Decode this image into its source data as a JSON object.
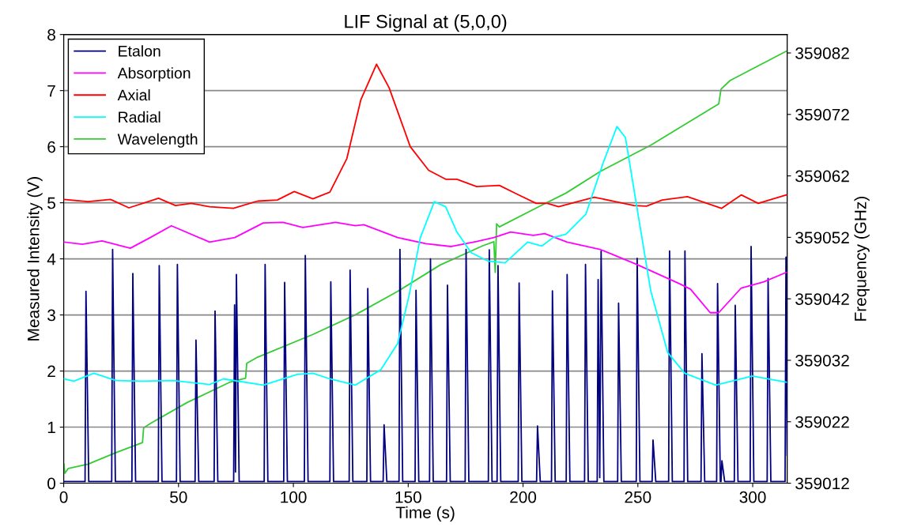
{
  "chart_data": {
    "type": "line",
    "title": "LIF Signal at (5,0,0)",
    "xlabel": "Time (s)",
    "ylabel": "Measured Intensity (V)",
    "y2label": "Frequency (GHz)",
    "xlim": [
      0,
      315
    ],
    "xticks": [
      0,
      50,
      100,
      150,
      200,
      250,
      300
    ],
    "ylim": [
      0,
      8
    ],
    "yticks": [
      0,
      1,
      2,
      3,
      4,
      5,
      6,
      7,
      8
    ],
    "y2lim": [
      359012,
      359085
    ],
    "y2ticks": [
      359012,
      359022,
      359032,
      359042,
      359052,
      359062,
      359072,
      359082
    ],
    "grid": "y",
    "legend": "top left",
    "marker": "none",
    "line_style": "solid",
    "series": [
      {
        "name": "Etalon",
        "color": "#000080",
        "x": [
          0,
          9.3,
          9.7,
          10.9,
          20.9,
          21.3,
          22.5,
          29.7,
          30.1,
          31.3,
          41.2,
          41.6,
          42.8,
          49.1,
          49.5,
          50.7,
          57.2,
          57.6,
          58.8,
          65.5,
          65.9,
          67.1,
          74.0,
          74.4,
          74.8,
          75.2,
          76.4,
          87.3,
          87.7,
          88.9,
          95.8,
          96.2,
          97.4,
          104.8,
          105.2,
          106.4,
          115.9,
          116.3,
          117.5,
          124.3,
          124.7,
          125.9,
          132.0,
          132.4,
          133.6,
          139.1,
          139.5,
          140.7,
          146.0,
          146.4,
          147.6,
          153.0,
          153.4,
          154.6,
          159.3,
          159.7,
          160.9,
          166.7,
          167.1,
          168.3,
          174.8,
          175.2,
          176.4,
          184.9,
          185.3,
          186.5,
          188.7,
          189.1,
          190.3,
          197.9,
          198.3,
          199.5,
          205.9,
          206.3,
          207.5,
          212.4,
          212.8,
          214.0,
          218.8,
          219.2,
          220.4,
          226.8,
          227.2,
          228.4,
          232.3,
          232.7,
          233.4,
          234.0,
          235.2,
          241.2,
          241.6,
          242.8,
          249.3,
          249.7,
          250.9,
          256.2,
          256.6,
          257.8,
          263.4,
          263.8,
          265.0,
          270.1,
          270.5,
          271.7,
          277.5,
          277.9,
          279.1,
          284.3,
          284.7,
          285.9,
          286.2,
          286.6,
          287.8,
          292.0,
          292.4,
          293.6,
          298.9,
          299.3,
          300.5,
          306.3,
          306.7,
          307.9,
          314.1,
          314.5,
          315.0
        ],
        "values": [
          0.03,
          0.03,
          3.42,
          0.03,
          0.03,
          4.17,
          0.03,
          0.03,
          3.74,
          0.03,
          0.03,
          3.88,
          0.03,
          0.03,
          3.9,
          0.03,
          0.03,
          2.55,
          0.03,
          0.03,
          3.07,
          0.03,
          0.03,
          3.18,
          0.2,
          3.72,
          0.03,
          0.03,
          3.9,
          0.03,
          0.03,
          3.58,
          0.03,
          0.03,
          4.06,
          0.03,
          0.03,
          3.59,
          0.03,
          0.03,
          3.8,
          0.03,
          0.03,
          3.47,
          0.03,
          0.03,
          1.04,
          0.03,
          0.03,
          4.17,
          0.03,
          0.03,
          3.44,
          0.03,
          0.03,
          4.0,
          0.03,
          0.03,
          3.53,
          0.03,
          0.03,
          4.17,
          0.03,
          0.03,
          4.16,
          0.03,
          0.03,
          3.88,
          0.03,
          0.03,
          3.57,
          0.03,
          0.03,
          1.02,
          0.03,
          0.03,
          3.43,
          0.03,
          0.03,
          3.72,
          0.03,
          0.03,
          3.9,
          0.03,
          0.03,
          3.63,
          0.1,
          4.14,
          0.03,
          0.03,
          3.21,
          0.03,
          0.03,
          4.01,
          0.03,
          0.03,
          0.77,
          0.03,
          0.03,
          4.14,
          0.03,
          0.03,
          4.14,
          0.03,
          0.03,
          2.31,
          0.03,
          0.03,
          3.56,
          0.03,
          0.03,
          0.4,
          0.03,
          0.03,
          3.17,
          0.03,
          0.03,
          4.22,
          0.03,
          0.03,
          3.65,
          0.03,
          0.03,
          4.03,
          0.5
        ]
      },
      {
        "name": "Absorption",
        "color": "#ff00ff",
        "x": [
          0.1,
          8.1,
          16.7,
          29.0,
          37.7,
          46.9,
          63.5,
          74.5,
          86.9,
          95.5,
          104.1,
          118.4,
          127,
          130.7,
          145.4,
          157.7,
          168.8,
          179.8,
          187.3,
          194.6,
          204.5,
          209.4,
          219.2,
          233.5,
          249.5,
          268,
          272.9,
          281.5,
          285.2,
          295,
          304.9,
          314.7
        ],
        "values": [
          4.3,
          4.26,
          4.32,
          4.19,
          4.38,
          4.59,
          4.3,
          4.38,
          4.64,
          4.65,
          4.56,
          4.65,
          4.59,
          4.61,
          4.38,
          4.27,
          4.22,
          4.31,
          4.38,
          4.48,
          4.42,
          4.45,
          4.3,
          4.17,
          3.9,
          3.56,
          3.46,
          3.04,
          3.04,
          3.48,
          3.59,
          3.76
        ]
      },
      {
        "name": "Axial",
        "color": "#ff0000",
        "x": [
          0.1,
          10.6,
          20.4,
          28.4,
          41.3,
          48.7,
          55.5,
          63.5,
          73.9,
          84.4,
          93,
          100.4,
          108.5,
          115.9,
          123.3,
          129.4,
          136.2,
          141.7,
          150.9,
          158.9,
          166.3,
          171.2,
          179.8,
          189.7,
          197.1,
          205.7,
          210.6,
          215.5,
          231,
          248.3,
          253.8,
          260.6,
          271.6,
          286.4,
          295,
          302.4,
          314.7
        ],
        "values": [
          5.06,
          5.02,
          5.06,
          4.91,
          5.08,
          4.95,
          4.99,
          4.93,
          4.9,
          5.03,
          5.05,
          5.2,
          5.07,
          5.19,
          5.79,
          6.84,
          7.47,
          7.05,
          6.0,
          5.58,
          5.42,
          5.42,
          5.29,
          5.31,
          5.16,
          4.99,
          4.99,
          4.93,
          5.1,
          4.95,
          4.94,
          5.05,
          5.11,
          4.9,
          5.14,
          4.99,
          5.14
        ]
      },
      {
        "name": "Radial",
        "color": "#00ffff",
        "x": [
          0.1,
          4.4,
          13.1,
          22.9,
          34,
          47.5,
          63.5,
          69.6,
          86.9,
          101.6,
          108.5,
          115.9,
          127,
          138,
          145.4,
          150.3,
          155.3,
          161.4,
          166.3,
          171.2,
          177.4,
          184.8,
          192.2,
          202,
          208.2,
          213.1,
          218.7,
          227.4,
          234.7,
          240.9,
          244.6,
          250.7,
          255.6,
          263,
          270.4,
          283.9,
          299.9,
          314.7
        ],
        "values": [
          1.86,
          1.82,
          1.96,
          1.83,
          1.82,
          1.83,
          1.76,
          1.86,
          1.75,
          1.94,
          1.96,
          1.86,
          1.75,
          2.02,
          2.49,
          3.33,
          4.38,
          5.02,
          4.93,
          4.48,
          4.11,
          3.96,
          3.93,
          4.3,
          4.23,
          4.38,
          4.44,
          4.8,
          5.69,
          6.36,
          6.16,
          4.64,
          3.43,
          2.33,
          1.96,
          1.75,
          1.91,
          1.8
        ]
      },
      {
        "name": "Wavelength",
        "color": "#33cc33",
        "axis": "y2",
        "x": [
          0.1,
          0.5,
          2,
          10.6,
          22.9,
          34.3,
          34.8,
          37.7,
          53.6,
          72.1,
          79.2,
          79.7,
          84.4,
          108.5,
          127,
          145.4,
          163.9,
          182.3,
          187.3,
          187.9,
          188.5,
          189.7,
          206.9,
          218.7,
          233.5,
          255.6,
          285.2,
          286.2,
          290.1,
          314.7
        ],
        "values": [
          359015.1,
          359013.6,
          359014.4,
          359015.1,
          359017.0,
          359018.6,
          359021.0,
          359021.7,
          359025.1,
          359028.4,
          359029.1,
          359031.5,
          359032.5,
          359036.2,
          359039.4,
          359043.2,
          359047.5,
          359050.6,
          359051.3,
          359046.3,
          359054.2,
          359053.7,
          359057.0,
          359059.2,
          359062.7,
          359067.0,
          359073.7,
          359076.1,
          359077.5,
          359082.3
        ]
      }
    ]
  }
}
